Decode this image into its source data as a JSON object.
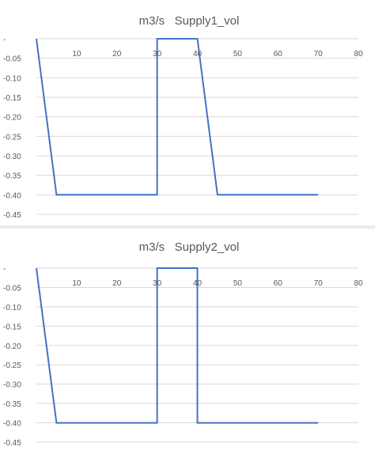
{
  "chart_data": [
    {
      "type": "line",
      "title": "m3/s   Supply1_vol",
      "xlim": [
        0,
        80
      ],
      "ylim": [
        -0.45,
        0
      ],
      "x_ticks": [
        "10",
        "20",
        "30",
        "40",
        "50",
        "60",
        "70",
        "80"
      ],
      "y_ticks": [
        "-",
        "-0.05",
        "-0.10",
        "-0.15",
        "-0.20",
        "-0.25",
        "-0.30",
        "-0.35",
        "-0.40",
        "-0.45"
      ],
      "grid": "horizontal",
      "legend": "none",
      "series": [
        {
          "color": "#4472C4",
          "x": [
            0,
            5,
            30,
            30,
            40,
            45,
            70
          ],
          "y": [
            0,
            -0.4,
            -0.4,
            0,
            0,
            -0.4,
            -0.4
          ]
        }
      ]
    },
    {
      "type": "line",
      "title": "m3/s   Supply2_vol",
      "xlim": [
        0,
        80
      ],
      "ylim": [
        -0.45,
        0
      ],
      "x_ticks": [
        "10",
        "20",
        "30",
        "40",
        "50",
        "60",
        "70",
        "80"
      ],
      "y_ticks": [
        "-",
        "-0.05",
        "-0.10",
        "-0.15",
        "-0.20",
        "-0.25",
        "-0.30",
        "-0.35",
        "-0.40",
        "-0.45"
      ],
      "grid": "horizontal",
      "legend": "none",
      "series": [
        {
          "color": "#4472C4",
          "x": [
            0,
            5,
            30,
            30,
            40,
            40,
            70
          ],
          "y": [
            0,
            -0.4,
            -0.4,
            0,
            0,
            -0.4,
            -0.4
          ]
        }
      ]
    }
  ]
}
